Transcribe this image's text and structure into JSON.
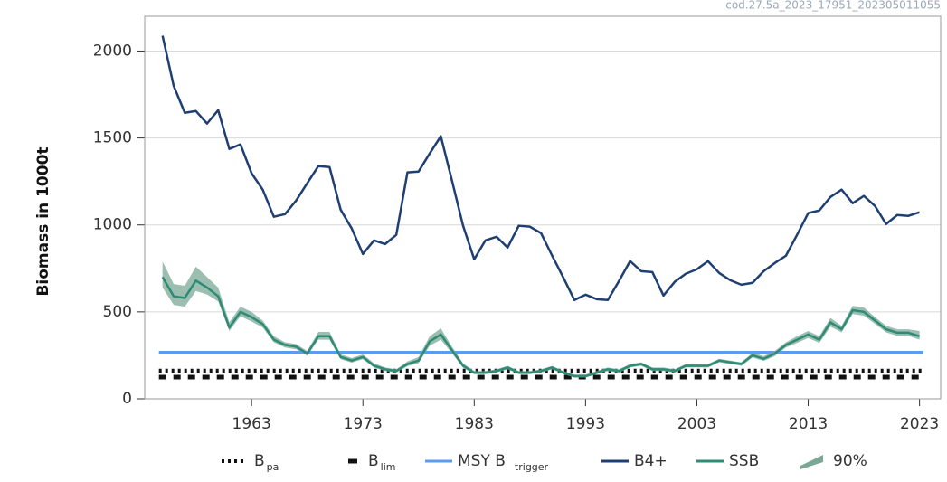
{
  "chart_data": {
    "type": "line",
    "source": "cod.27.5a_2023_17951_202305011055",
    "ylabel": "Biomass in 1000t",
    "xlim": [
      1953.4,
      2024.9
    ],
    "ylim": [
      0,
      2200
    ],
    "xticks": [
      1963,
      1973,
      1983,
      1993,
      2003,
      2013,
      2023
    ],
    "yticks": [
      0,
      500,
      1000,
      1500,
      2000
    ],
    "grid": true,
    "legend": "bottom",
    "x": [
      1955,
      1956,
      1957,
      1958,
      1959,
      1960,
      1961,
      1962,
      1963,
      1964,
      1965,
      1966,
      1967,
      1968,
      1969,
      1970,
      1971,
      1972,
      1973,
      1974,
      1975,
      1976,
      1977,
      1978,
      1979,
      1980,
      1981,
      1982,
      1983,
      1984,
      1985,
      1986,
      1987,
      1988,
      1989,
      1990,
      1991,
      1992,
      1993,
      1994,
      1995,
      1996,
      1997,
      1998,
      1999,
      2000,
      2001,
      2002,
      2003,
      2004,
      2005,
      2006,
      2007,
      2008,
      2009,
      2010,
      2011,
      2012,
      2013,
      2014,
      2015,
      2016,
      2017,
      2018,
      2019,
      2020,
      2021,
      2022,
      2023
    ],
    "series": [
      {
        "name": "B",
        "sub": "pa",
        "color": "#111111",
        "style": "dotted",
        "value": 160
      },
      {
        "name": "B",
        "sub": "lim",
        "color": "#111111",
        "style": "dashed",
        "value": 125
      },
      {
        "name": "MSY B",
        "sub": "trigger",
        "color": "#5b9cf0",
        "style": "solid",
        "value": 265
      },
      {
        "name": "B4+",
        "color": "#1f3f73",
        "values": [
          2088,
          1800,
          1645,
          1655,
          1583,
          1660,
          1437,
          1463,
          1297,
          1203,
          1047,
          1062,
          1140,
          1240,
          1338,
          1333,
          1088,
          979,
          833,
          911,
          890,
          943,
          1302,
          1307,
          1411,
          1510,
          1255,
          995,
          802,
          911,
          932,
          870,
          995,
          990,
          953,
          823,
          698,
          568,
          599,
          573,
          568,
          677,
          792,
          734,
          729,
          594,
          672,
          719,
          745,
          792,
          724,
          682,
          656,
          667,
          734,
          781,
          823,
          943,
          1068,
          1083,
          1161,
          1203,
          1125,
          1167,
          1109,
          1005,
          1057,
          1052,
          1073
        ]
      },
      {
        "name": "SSB",
        "color": "#2e8b74",
        "values": [
          700,
          590,
          580,
          680,
          640,
          590,
          410,
          500,
          470,
          430,
          340,
          310,
          300,
          260,
          360,
          360,
          240,
          220,
          240,
          190,
          170,
          160,
          200,
          220,
          330,
          370,
          280,
          190,
          150,
          150,
          160,
          180,
          150,
          150,
          160,
          180,
          150,
          130,
          130,
          150,
          170,
          160,
          190,
          200,
          170,
          170,
          160,
          190,
          190,
          190,
          220,
          210,
          200,
          250,
          230,
          260,
          310,
          340,
          370,
          340,
          440,
          400,
          510,
          500,
          450,
          400,
          380,
          380,
          360
        ]
      },
      {
        "name": "90%",
        "color": "#7aa897",
        "high": [
          790,
          660,
          650,
          760,
          700,
          640,
          440,
          530,
          500,
          450,
          360,
          325,
          315,
          275,
          385,
          385,
          255,
          235,
          255,
          205,
          180,
          170,
          215,
          240,
          360,
          405,
          300,
          205,
          160,
          160,
          170,
          190,
          160,
          160,
          170,
          190,
          160,
          140,
          140,
          160,
          180,
          170,
          200,
          210,
          180,
          180,
          170,
          200,
          200,
          200,
          230,
          220,
          210,
          265,
          245,
          275,
          325,
          360,
          390,
          360,
          465,
          420,
          535,
          525,
          470,
          420,
          400,
          400,
          390
        ],
        "low": [
          640,
          540,
          530,
          620,
          600,
          560,
          390,
          475,
          445,
          410,
          325,
          295,
          285,
          248,
          340,
          340,
          228,
          208,
          228,
          180,
          160,
          150,
          188,
          205,
          305,
          340,
          262,
          178,
          142,
          142,
          150,
          170,
          142,
          142,
          150,
          170,
          142,
          122,
          122,
          142,
          160,
          150,
          180,
          190,
          160,
          160,
          150,
          180,
          180,
          180,
          210,
          200,
          190,
          238,
          218,
          245,
          295,
          322,
          350,
          322,
          415,
          382,
          488,
          478,
          432,
          382,
          362,
          362,
          340
        ]
      }
    ]
  }
}
